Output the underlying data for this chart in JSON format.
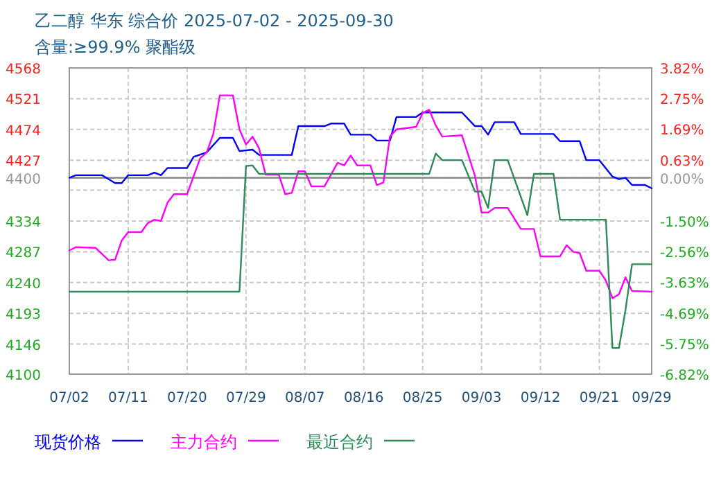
{
  "chart_data": {
    "type": "line",
    "title": "乙二醇 华东 综合价 2025-07-02 - 2025-09-30",
    "subtitle": "含量:≥99.9% 聚酯级",
    "xlim": [
      "2025-07-02",
      "2025-09-29"
    ],
    "xticks": [
      {
        "value": "2025-07-02",
        "label": "07/02"
      },
      {
        "value": "2025-07-11",
        "label": "07/11"
      },
      {
        "value": "2025-07-20",
        "label": "07/20"
      },
      {
        "value": "2025-07-29",
        "label": "07/29"
      },
      {
        "value": "2025-08-07",
        "label": "08/07"
      },
      {
        "value": "2025-08-16",
        "label": "08/16"
      },
      {
        "value": "2025-08-25",
        "label": "08/25"
      },
      {
        "value": "2025-09-03",
        "label": "09/03"
      },
      {
        "value": "2025-09-12",
        "label": "09/12"
      },
      {
        "value": "2025-09-21",
        "label": "09/21"
      },
      {
        "value": "2025-09-29",
        "label": "09/29"
      }
    ],
    "ylim": [
      4100,
      4568
    ],
    "yticks": [
      4100,
      4146,
      4193,
      4240,
      4287,
      4334,
      {
        "value": 4381,
        "label": null
      },
      4400,
      4427,
      4474,
      4521,
      4568
    ],
    "y2lim": [
      -6.82,
      3.82
    ],
    "y2ticks": [
      {
        "value": -6.82,
        "label": "-6.82%"
      },
      {
        "value": -5.75,
        "label": "-5.75%"
      },
      {
        "value": -4.69,
        "label": "-4.69%"
      },
      {
        "value": -3.63,
        "label": "-3.63%"
      },
      {
        "value": -2.56,
        "label": "-2.56%"
      },
      {
        "value": -1.5,
        "label": "-1.50%"
      },
      {
        "value": 0,
        "label": "0.00%"
      },
      {
        "value": 0.63,
        "label": "0.63%"
      },
      {
        "value": 1.69,
        "label": "1.69%"
      },
      {
        "value": 2.75,
        "label": "2.75%"
      },
      {
        "value": 3.82,
        "label": "3.82%"
      }
    ],
    "grid": true,
    "legend": "bottom",
    "line_style": "solid",
    "ref_lines": [
      {
        "axis": "y",
        "value": 4400,
        "color": "#808080",
        "line_style": "solid"
      }
    ],
    "series": [
      {
        "name": "现货价格",
        "color": "#0000ff",
        "x": [
          "2025-07-02",
          "2025-07-03",
          "2025-07-07",
          "2025-07-09",
          "2025-07-10",
          "2025-07-11",
          "2025-07-14",
          "2025-07-15",
          "2025-07-16",
          "2025-07-17",
          "2025-07-20",
          "2025-07-21",
          "2025-07-23",
          "2025-07-25",
          "2025-07-27",
          "2025-07-28",
          "2025-07-30",
          "2025-07-31",
          "2025-08-05",
          "2025-08-06",
          "2025-08-10",
          "2025-08-11",
          "2025-08-13",
          "2025-08-14",
          "2025-08-17",
          "2025-08-18",
          "2025-08-20",
          "2025-08-21",
          "2025-08-24",
          "2025-08-25",
          "2025-08-31",
          "2025-09-02",
          "2025-09-03",
          "2025-09-04",
          "2025-09-05",
          "2025-09-08",
          "2025-09-09",
          "2025-09-14",
          "2025-09-15",
          "2025-09-18",
          "2025-09-19",
          "2025-09-21",
          "2025-09-23",
          "2025-09-24",
          "2025-09-25",
          "2025-09-26",
          "2025-09-28",
          "2025-09-29"
        ],
        "values": [
          4400,
          4404,
          4404,
          4392,
          4392,
          4404,
          4404,
          4408,
          4404,
          4415,
          4415,
          4432,
          4439,
          4461,
          4461,
          4441,
          4443,
          4435,
          4435,
          4479,
          4479,
          4483,
          4483,
          4466,
          4466,
          4457,
          4457,
          4493,
          4493,
          4500,
          4500,
          4479,
          4479,
          4466,
          4485,
          4485,
          4467,
          4467,
          4456,
          4456,
          4427,
          4427,
          4402,
          4398,
          4400,
          4389,
          4389,
          4384
        ]
      },
      {
        "name": "主力合约",
        "color": "#ff00ff",
        "x": [
          "2025-07-02",
          "2025-07-03",
          "2025-07-06",
          "2025-07-08",
          "2025-07-09",
          "2025-07-10",
          "2025-07-11",
          "2025-07-13",
          "2025-07-14",
          "2025-07-15",
          "2025-07-16",
          "2025-07-17",
          "2025-07-18",
          "2025-07-20",
          "2025-07-22",
          "2025-07-23",
          "2025-07-24",
          "2025-07-25",
          "2025-07-27",
          "2025-07-28",
          "2025-07-29",
          "2025-07-30",
          "2025-07-31",
          "2025-08-01",
          "2025-08-03",
          "2025-08-04",
          "2025-08-05",
          "2025-08-06",
          "2025-08-07",
          "2025-08-08",
          "2025-08-10",
          "2025-08-12",
          "2025-08-13",
          "2025-08-14",
          "2025-08-15",
          "2025-08-17",
          "2025-08-18",
          "2025-08-19",
          "2025-08-20",
          "2025-08-21",
          "2025-08-24",
          "2025-08-25",
          "2025-08-26",
          "2025-08-27",
          "2025-08-28",
          "2025-08-31",
          "2025-09-02",
          "2025-09-03",
          "2025-09-04",
          "2025-09-05",
          "2025-09-07",
          "2025-09-09",
          "2025-09-11",
          "2025-09-12",
          "2025-09-15",
          "2025-09-16",
          "2025-09-17",
          "2025-09-18",
          "2025-09-19",
          "2025-09-21",
          "2025-09-22",
          "2025-09-23",
          "2025-09-24",
          "2025-09-25",
          "2025-09-26",
          "2025-09-29"
        ],
        "values": [
          4289,
          4294,
          4293,
          4274,
          4275,
          4304,
          4317,
          4317,
          4331,
          4336,
          4334,
          4362,
          4375,
          4375,
          4430,
          4439,
          4467,
          4526,
          4526,
          4474,
          4451,
          4463,
          4445,
          4405,
          4405,
          4375,
          4377,
          4410,
          4410,
          4387,
          4387,
          4423,
          4419,
          4434,
          4419,
          4419,
          4389,
          4393,
          4463,
          4474,
          4478,
          4499,
          4504,
          4480,
          4463,
          4465,
          4403,
          4347,
          4347,
          4354,
          4354,
          4322,
          4322,
          4280,
          4280,
          4297,
          4287,
          4285,
          4258,
          4258,
          4243,
          4216,
          4222,
          4248,
          4227,
          4226
        ]
      },
      {
        "name": "最近合约",
        "color": "#2e8b57",
        "x": [
          "2025-07-02",
          "2025-07-28",
          "2025-07-29",
          "2025-07-30",
          "2025-07-31",
          "2025-08-26",
          "2025-08-27",
          "2025-08-28",
          "2025-08-31",
          "2025-09-02",
          "2025-09-03",
          "2025-09-04",
          "2025-09-05",
          "2025-09-07",
          "2025-09-10",
          "2025-09-11",
          "2025-09-14",
          "2025-09-15",
          "2025-09-22",
          "2025-09-23",
          "2025-09-24",
          "2025-09-25",
          "2025-09-26",
          "2025-09-29"
        ],
        "values": [
          4226,
          4226,
          4418,
          4419,
          4406,
          4406,
          4437,
          4427,
          4427,
          4379,
          4379,
          4354,
          4427,
          4427,
          4343,
          4406,
          4406,
          4336,
          4336,
          4140,
          4140,
          4198,
          4268,
          4268
        ]
      }
    ]
  }
}
